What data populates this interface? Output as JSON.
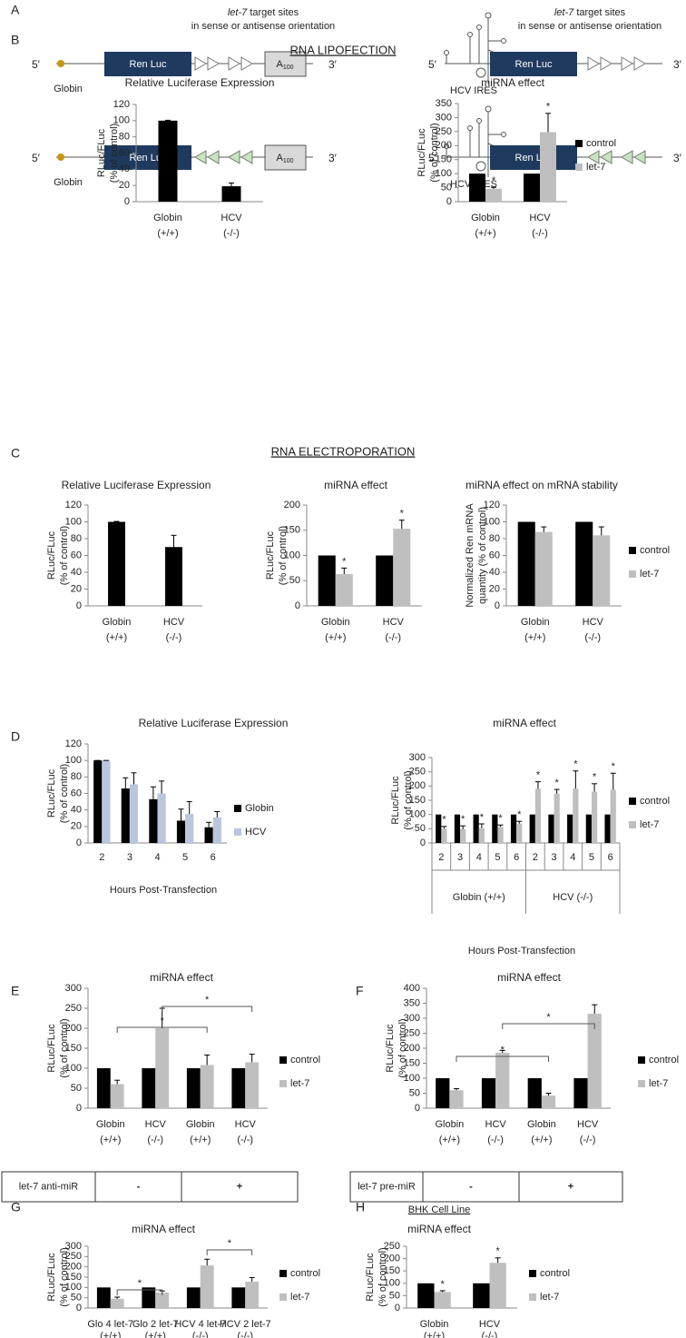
{
  "diagram": {
    "target_note": [
      "let-7",
      " target sites",
      "in sense or antisense orientation"
    ],
    "five": "5′",
    "three": "3′",
    "reporter": "Ren Luc",
    "polya": "A",
    "polya_sub": "100",
    "cap": "Globin",
    "ires": "HCV IRES"
  },
  "panel_labels": [
    "A",
    "B",
    "C",
    "D",
    "E",
    "F",
    "G",
    "H"
  ],
  "section_titles": [
    "RNA LIPOFECTION",
    "RNA ELECTROPORATION",
    "BHK Cell Line"
  ],
  "tables": [
    {
      "header": "let-7 anti-miR",
      "cells": [
        "-",
        "+"
      ]
    },
    {
      "header": "let-7 pre-miR",
      "cells": [
        "-",
        "+"
      ]
    }
  ],
  "chart_data": [
    {
      "type": "bar",
      "title": "Relative Luciferase Expression",
      "ylabel": [
        "RLuc/FLuc",
        "(% of control)"
      ],
      "categories": [
        [
          "Globin",
          "(+/+)"
        ],
        [
          "HCV",
          "(-/-)"
        ]
      ],
      "values": [
        100,
        19
      ],
      "errors": [
        0.5,
        4
      ],
      "color": "#000000",
      "ylim": [
        0,
        120
      ],
      "yticks": [
        0,
        20,
        40,
        60,
        80,
        100,
        120
      ]
    },
    {
      "type": "bar",
      "title": "miRNA effect",
      "ylabel": [
        "RLuc/FLuc",
        "(% of control)"
      ],
      "categories": [
        [
          "Globin",
          "(+/+)"
        ],
        [
          "HCV",
          "(-/-)"
        ]
      ],
      "series": [
        {
          "name": "control",
          "color": "#000000",
          "values": [
            100,
            100
          ]
        },
        {
          "name": "let-7",
          "color": "#bfbfbf",
          "values": [
            46,
            248
          ],
          "errors": [
            5,
            67
          ],
          "stars": [
            "*",
            "*"
          ]
        }
      ],
      "ylim": [
        0,
        350
      ],
      "yticks": [
        0,
        50,
        100,
        150,
        200,
        250,
        300,
        350
      ],
      "legend": "right"
    },
    {
      "type": "bar",
      "title": "Relative Luciferase Expression",
      "ylabel": [
        "RLuc/FLuc",
        "(% of control)"
      ],
      "categories": [
        [
          "Globin",
          "(+/+)"
        ],
        [
          "HCV",
          "(-/-)"
        ]
      ],
      "values": [
        100,
        70
      ],
      "errors": [
        0.5,
        14
      ],
      "color": "#000000",
      "ylim": [
        0,
        120
      ],
      "yticks": [
        0,
        20,
        40,
        60,
        80,
        100,
        120
      ]
    },
    {
      "type": "bar",
      "title": "miRNA effect",
      "ylabel": [
        "RLuc/FLuc",
        "(% of control)"
      ],
      "categories": [
        [
          "Globin",
          "(+/+)"
        ],
        [
          "HCV",
          "(-/-)"
        ]
      ],
      "series": [
        {
          "name": "control",
          "color": "#000000",
          "values": [
            100,
            100
          ]
        },
        {
          "name": "let-7",
          "color": "#bfbfbf",
          "values": [
            63,
            153
          ],
          "errors": [
            12,
            17
          ],
          "stars": [
            "*",
            "*"
          ]
        }
      ],
      "ylim": [
        0,
        200
      ],
      "yticks": [
        0,
        50,
        100,
        150,
        200
      ]
    },
    {
      "type": "bar",
      "title": "miRNA effect on mRNA stability",
      "ylabel": [
        "Normalized Ren mRNA",
        "quantity (% of control)"
      ],
      "categories": [
        [
          "Globin",
          "(+/+)"
        ],
        [
          "HCV",
          "(-/-)"
        ]
      ],
      "series": [
        {
          "name": "control",
          "color": "#000000",
          "values": [
            100,
            100
          ]
        },
        {
          "name": "let-7",
          "color": "#bfbfbf",
          "values": [
            88,
            84
          ],
          "errors": [
            6,
            10
          ]
        }
      ],
      "ylim": [
        0,
        120
      ],
      "yticks": [
        0,
        20,
        40,
        60,
        80,
        100,
        120
      ],
      "legend": "right"
    },
    {
      "type": "bar",
      "title": "Relative Luciferase Expression",
      "ylabel": [
        "RLuc/FLuc",
        "(% of control)"
      ],
      "xlabel": "Hours Post-Transfection",
      "categories": [
        "2",
        "3",
        "4",
        "5",
        "6"
      ],
      "series": [
        {
          "name": "Globin",
          "color": "#000000",
          "values": [
            100,
            66,
            53,
            27,
            19
          ],
          "errors": [
            0,
            13,
            15,
            14,
            6
          ]
        },
        {
          "name": "HCV",
          "color": "#b8c7dc",
          "values": [
            100,
            71,
            60,
            35,
            31
          ],
          "errors": [
            0,
            14,
            15,
            15,
            7
          ]
        }
      ],
      "ylim": [
        0,
        120
      ],
      "yticks": [
        0,
        20,
        40,
        60,
        80,
        100,
        120
      ],
      "legend": "right"
    },
    {
      "type": "bar",
      "title": "miRNA effect",
      "ylabel": [
        "RLuc/FLuc",
        "(% of control)"
      ],
      "xlabel": "Hours Post-Transfection",
      "categories": [
        "2",
        "3",
        "4",
        "5",
        "6",
        "2",
        "3",
        "4",
        "5",
        "6"
      ],
      "groups": [
        "Globin  (+/+)",
        "HCV (-/-)"
      ],
      "series": [
        {
          "name": "control",
          "color": "#000000",
          "values": [
            100,
            100,
            100,
            100,
            100,
            100,
            100,
            100,
            100,
            100
          ]
        },
        {
          "name": "let-7",
          "color": "#bfbfbf",
          "values": [
            50,
            48,
            52,
            57,
            68,
            190,
            173,
            191,
            180,
            187
          ],
          "errors": [
            8,
            12,
            15,
            6,
            8,
            25,
            15,
            62,
            28,
            58
          ],
          "stars": [
            "*",
            "*",
            "*",
            "*",
            "*",
            "*",
            "*",
            "*",
            "*",
            "*"
          ]
        }
      ],
      "ylim": [
        0,
        300
      ],
      "yticks": [
        0,
        50,
        100,
        150,
        200,
        250,
        300
      ],
      "legend": "right"
    },
    {
      "type": "bar",
      "title": "miRNA effect",
      "ylabel": [
        "RLuc/FLuc",
        "(% of control)"
      ],
      "categories": [
        [
          "Globin",
          "(+/+)"
        ],
        [
          "HCV",
          "(-/-)"
        ],
        [
          "Globin",
          "(+/+)"
        ],
        [
          "HCV",
          "(-/-)"
        ]
      ],
      "series": [
        {
          "name": "control",
          "color": "#000000",
          "values": [
            100,
            100,
            100,
            100
          ]
        },
        {
          "name": "let-7",
          "color": "#bfbfbf",
          "values": [
            60,
            200,
            108,
            115
          ],
          "errors": [
            10,
            50,
            25,
            20
          ]
        }
      ],
      "brackets": [
        {
          "text": "*",
          "from": 0,
          "to": 2
        },
        {
          "text": "*",
          "from": 1,
          "to": 3
        }
      ],
      "ylim": [
        0,
        300
      ],
      "yticks": [
        0,
        50,
        100,
        150,
        200,
        250,
        300
      ],
      "legend": "right"
    },
    {
      "type": "bar",
      "title": "miRNA effect",
      "ylabel": [
        "RLuc/FLuc",
        "(% of control)"
      ],
      "categories": [
        [
          "Globin",
          "(+/+)"
        ],
        [
          "HCV",
          "(-/-)"
        ],
        [
          "Globin",
          "(+/+)"
        ],
        [
          "HCV",
          "(-/-)"
        ]
      ],
      "series": [
        {
          "name": "control",
          "color": "#000000",
          "values": [
            100,
            100,
            100,
            100
          ]
        },
        {
          "name": "let-7",
          "color": "#bfbfbf",
          "values": [
            60,
            185,
            42,
            315
          ],
          "errors": [
            5,
            8,
            8,
            30
          ]
        }
      ],
      "brackets": [
        {
          "text": "*",
          "from": 0,
          "to": 2
        },
        {
          "text": "*",
          "from": 1,
          "to": 3
        }
      ],
      "ylim": [
        0,
        400
      ],
      "yticks": [
        0,
        50,
        100,
        150,
        200,
        250,
        300,
        350,
        400
      ],
      "legend": "right"
    },
    {
      "type": "bar",
      "title": "miRNA effect",
      "ylabel": [
        "RLuc/FLuc",
        "(% of control)"
      ],
      "categories": [
        [
          "Glo 4 let-7",
          "(+/+)"
        ],
        [
          "Glo 2 let-7",
          "(+/+)"
        ],
        [
          "HCV 4 let-7",
          "(-/-)"
        ],
        [
          "HCV 2 let-7",
          "(-/-)"
        ]
      ],
      "series": [
        {
          "name": "control",
          "color": "#000000",
          "values": [
            100,
            100,
            100,
            100
          ]
        },
        {
          "name": "let-7",
          "color": "#bfbfbf",
          "values": [
            45,
            75,
            207,
            128
          ],
          "errors": [
            8,
            8,
            30,
            20
          ]
        }
      ],
      "brackets": [
        {
          "text": "*",
          "from": 0,
          "to": 1
        },
        {
          "text": "*",
          "from": 2,
          "to": 3
        }
      ],
      "ylim": [
        0,
        300
      ],
      "yticks": [
        0,
        50,
        100,
        150,
        200,
        250,
        300
      ],
      "legend": "right"
    },
    {
      "type": "bar",
      "title": "miRNA effect",
      "ylabel": [
        "RLuc/FLuc",
        "(% of control)"
      ],
      "categories": [
        [
          "Globin",
          "(+/+)"
        ],
        [
          "HCV",
          "(-/-)"
        ]
      ],
      "series": [
        {
          "name": "control",
          "color": "#000000",
          "values": [
            100,
            100
          ]
        },
        {
          "name": "let-7",
          "color": "#bfbfbf",
          "values": [
            65,
            183
          ],
          "errors": [
            5,
            20
          ],
          "stars": [
            "*",
            "*"
          ]
        }
      ],
      "ylim": [
        0,
        250
      ],
      "yticks": [
        0,
        50,
        100,
        150,
        200,
        250
      ],
      "legend": "right"
    }
  ]
}
